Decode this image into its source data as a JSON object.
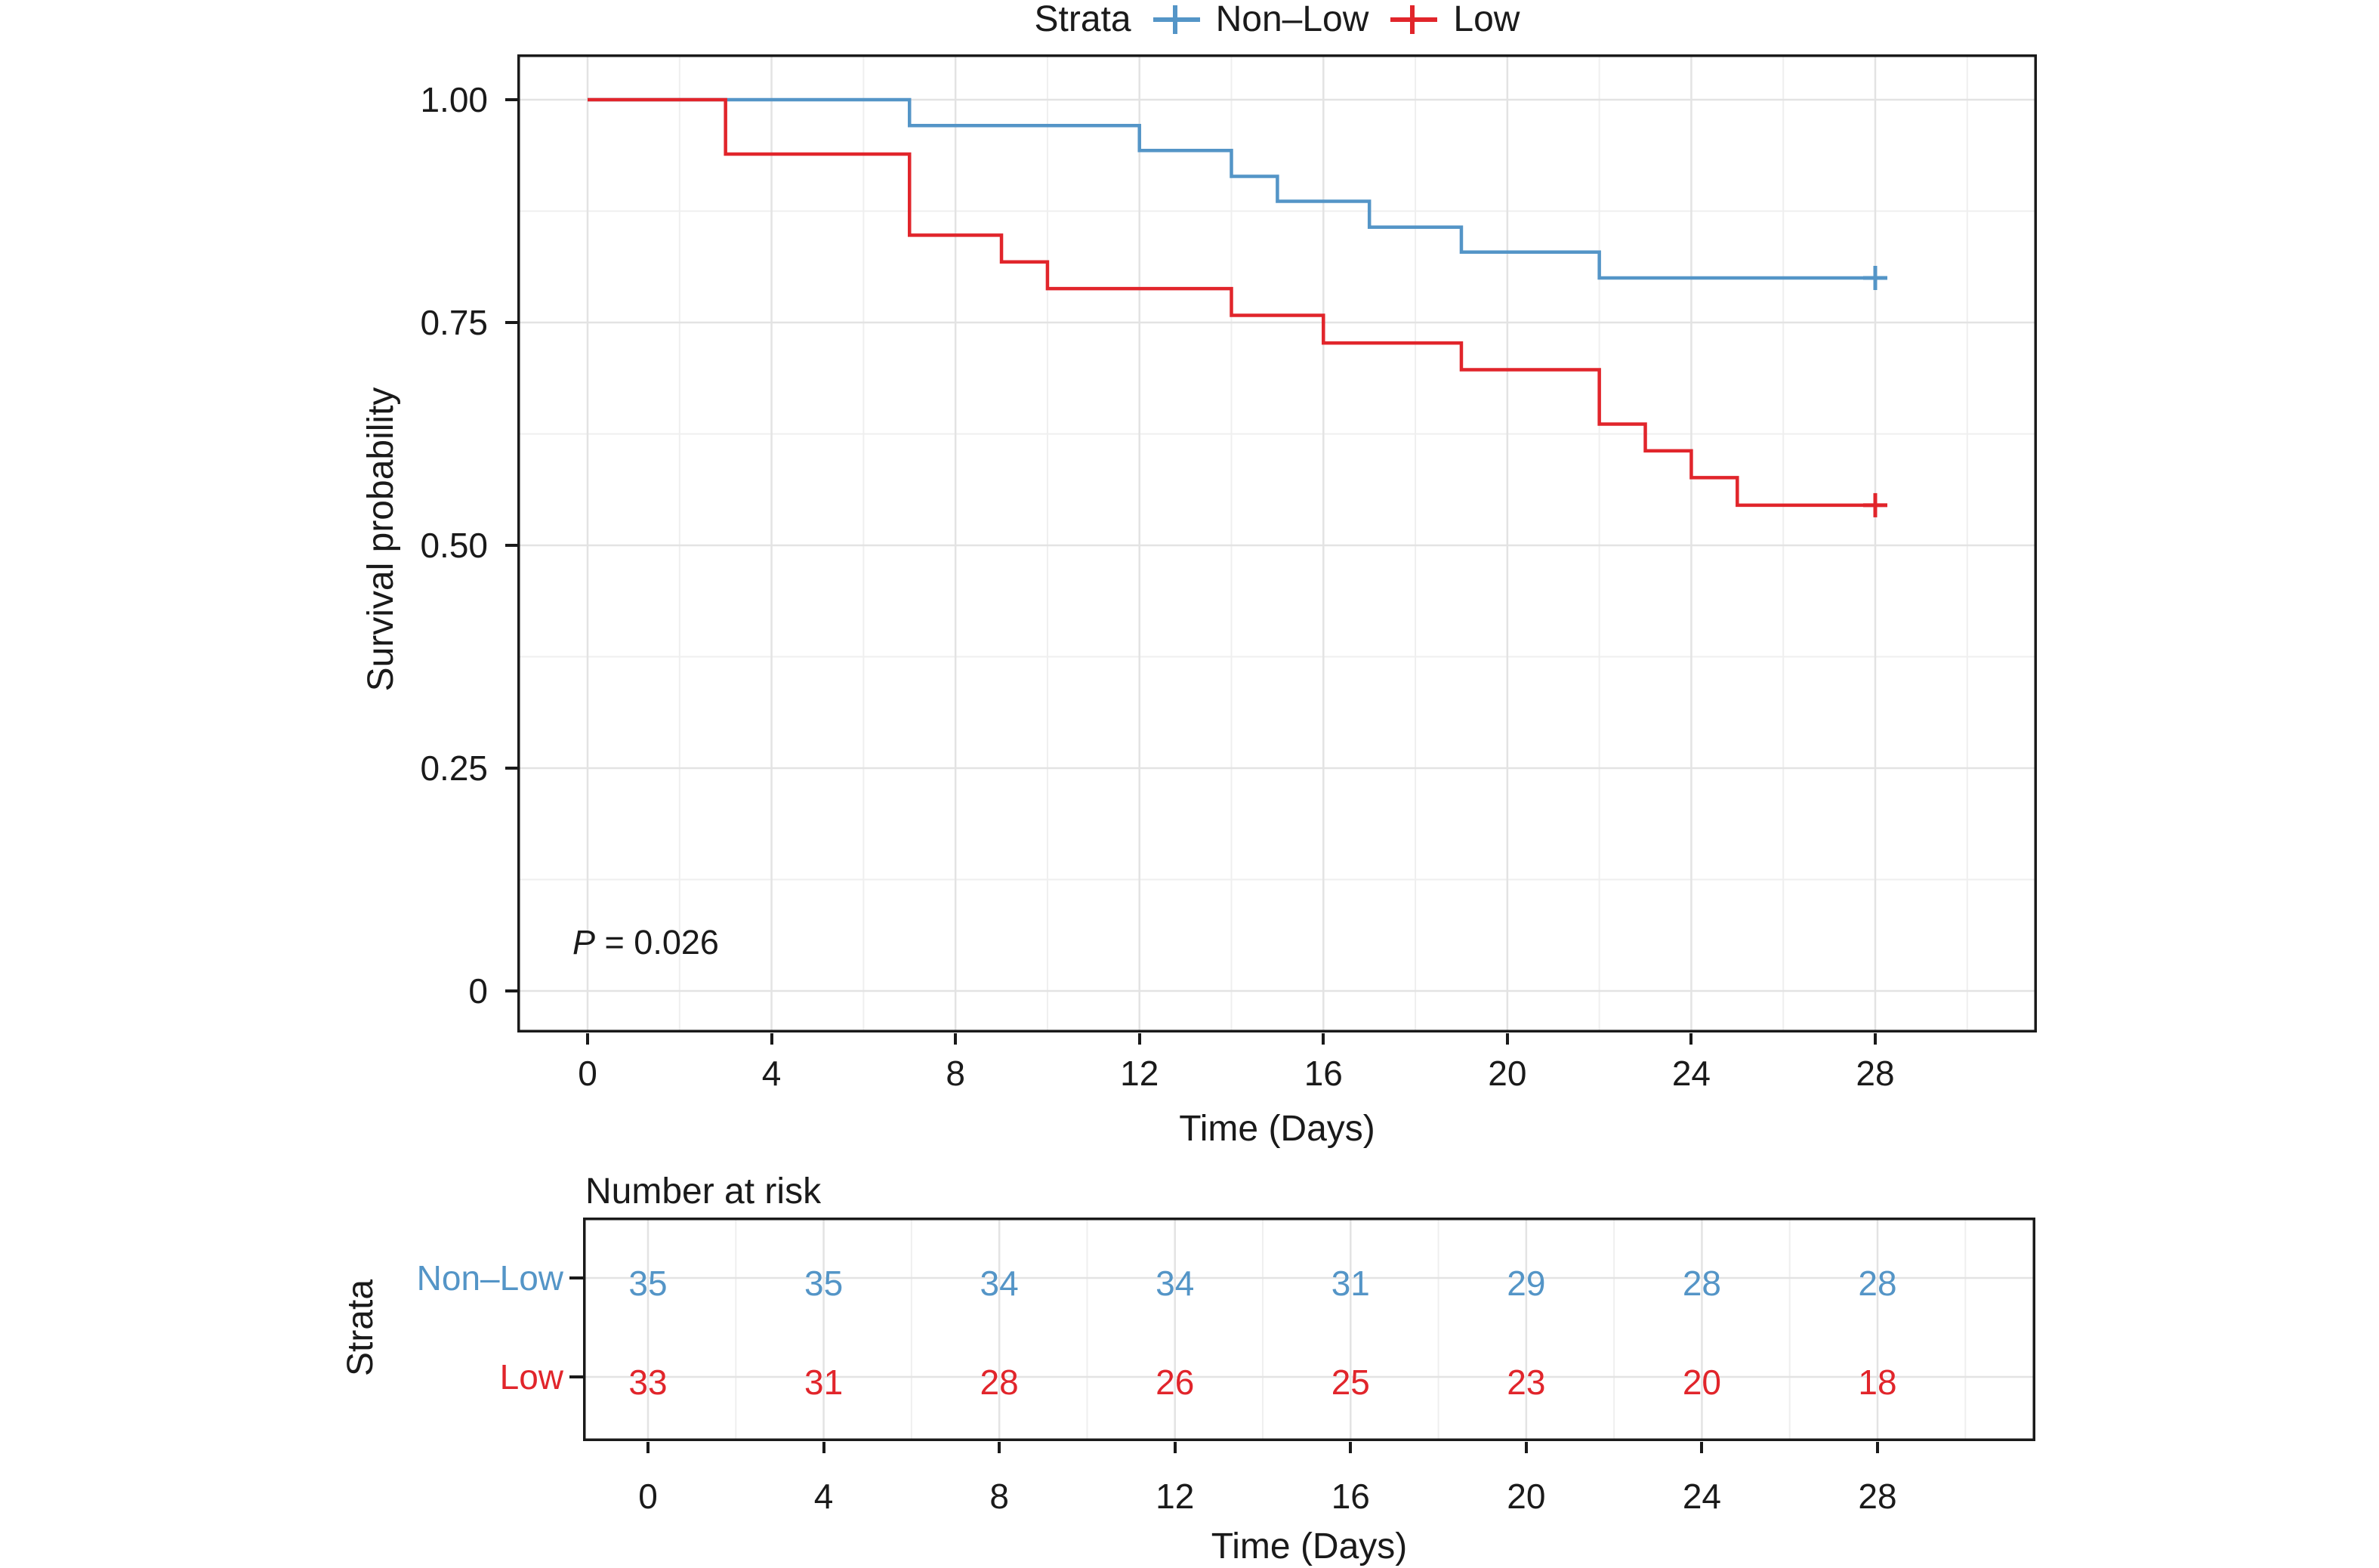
{
  "chart_data": [
    {
      "type": "line",
      "subtype": "kaplan_meier_step",
      "title": "",
      "xlabel": "Time (Days)",
      "ylabel": "Survival probability",
      "xlim": [
        -1.5,
        31.6
      ],
      "ylim": [
        -0.05,
        1.05
      ],
      "xticks": [
        0,
        4,
        8,
        12,
        16,
        20,
        24,
        28
      ],
      "yticks": [
        {
          "label": "1.00",
          "value": 1.0
        },
        {
          "label": "0.75",
          "value": 0.75
        },
        {
          "label": "0.50",
          "value": 0.5
        },
        {
          "label": "0.25",
          "value": 0.25
        },
        {
          "label": "0",
          "value": 0.0
        }
      ],
      "grid": "major_and_minor",
      "legend": {
        "title": "Strata",
        "position": "top"
      },
      "annotations": [
        {
          "text": "P = 0.026",
          "italic_prefix": "P",
          "rest": " = 0.026"
        }
      ],
      "series": [
        {
          "name": "Non–Low",
          "color": "#5495C7",
          "steps": [
            [
              0,
              1.0
            ],
            [
              7,
              0.971
            ],
            [
              12,
              0.943
            ],
            [
              14,
              0.914
            ],
            [
              15,
              0.886
            ],
            [
              17,
              0.857
            ],
            [
              19,
              0.829
            ],
            [
              22,
              0.8
            ]
          ],
          "end": [
            28,
            0.8
          ],
          "censored": [
            [
              28,
              0.8
            ]
          ]
        },
        {
          "name": "Low",
          "color": "#E1252B",
          "steps": [
            [
              0,
              1.0
            ],
            [
              3,
              0.939
            ],
            [
              7,
              0.848
            ],
            [
              9,
              0.818
            ],
            [
              10,
              0.788
            ],
            [
              14,
              0.758
            ],
            [
              16,
              0.727
            ],
            [
              19,
              0.697
            ],
            [
              22,
              0.636
            ],
            [
              23,
              0.606
            ],
            [
              24,
              0.576
            ],
            [
              25,
              0.545
            ]
          ],
          "end": [
            28,
            0.545
          ],
          "censored": [
            [
              28,
              0.545
            ]
          ]
        }
      ]
    },
    {
      "type": "table",
      "title": "Number at risk",
      "xlabel": "Time (Days)",
      "ylabel": "Strata",
      "xticks": [
        0,
        4,
        8,
        12,
        16,
        20,
        24,
        28
      ],
      "rows": [
        {
          "label": "Non–Low",
          "color": "#5495C7",
          "values": [
            35,
            35,
            34,
            34,
            31,
            29,
            28,
            28
          ]
        },
        {
          "label": "Low",
          "color": "#E1252B",
          "values": [
            33,
            31,
            28,
            26,
            25,
            23,
            20,
            18
          ]
        }
      ]
    }
  ],
  "style": {
    "grid_major_color": "#E3E3E3",
    "grid_minor_color": "#EFEFEF",
    "border_color": "#1a1a1a",
    "text_color": "#1a1a1a",
    "background": "#ffffff"
  }
}
